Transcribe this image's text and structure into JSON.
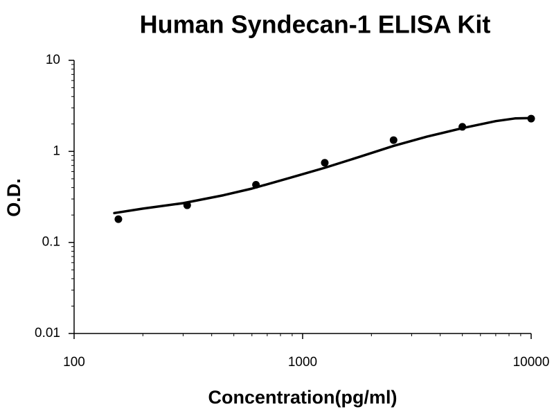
{
  "chart_data": {
    "type": "scatter",
    "title": "Human Syndecan-1 ELISA Kit",
    "x_label": "Concentration(pg/ml)",
    "y_label": "O.D.",
    "log_x": true,
    "log_y": true,
    "xlim": [
      100,
      10000
    ],
    "ylim": [
      0.01,
      10
    ],
    "xticks": [
      100,
      1000,
      10000
    ],
    "yticks": [
      0.01,
      0.1,
      1,
      10
    ],
    "xminorticks": [
      200,
      300,
      400,
      500,
      600,
      700,
      800,
      900,
      2000,
      3000,
      4000,
      5000,
      6000,
      7000,
      8000,
      9000
    ],
    "yminorticks": [
      0.02,
      0.03,
      0.04,
      0.05,
      0.06,
      0.07,
      0.08,
      0.09,
      0.2,
      0.3,
      0.4,
      0.5,
      0.6,
      0.7,
      0.8,
      0.9,
      2,
      3,
      4,
      5,
      6,
      7,
      8,
      9
    ],
    "series": [
      {
        "color": "#000000",
        "x": [
          156.25,
          312.5,
          625,
          1250,
          2500,
          5000,
          10000
        ],
        "values": [
          0.18,
          0.256,
          0.43,
          0.75,
          1.33,
          1.86,
          2.29
        ]
      }
    ],
    "curve": {
      "color": "#000000",
      "x": [
        150,
        200,
        300,
        450,
        600,
        900,
        1250,
        1800,
        2500,
        3500,
        5000,
        7000,
        8500,
        10000
      ],
      "values": [
        0.21,
        0.235,
        0.27,
        0.33,
        0.39,
        0.52,
        0.66,
        0.88,
        1.15,
        1.45,
        1.8,
        2.15,
        2.3,
        2.32
      ]
    }
  }
}
